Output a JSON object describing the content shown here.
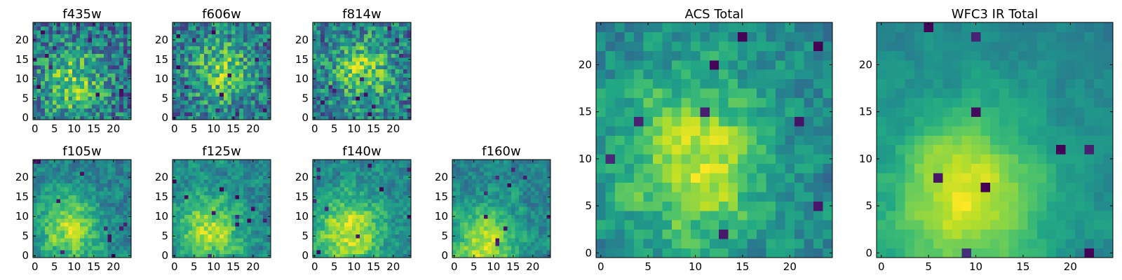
{
  "chart_data": [
    {
      "type": "heatmap",
      "title": "f435w",
      "xlim": [
        -0.5,
        24.5
      ],
      "ylim": [
        -0.5,
        24.5
      ],
      "x_ticks": [
        0,
        5,
        10,
        15,
        20
      ],
      "y_ticks": [
        0,
        5,
        10,
        15,
        20
      ],
      "grid": [
        25,
        25
      ],
      "colormap": "viridis",
      "center": [
        10,
        9
      ],
      "noise": 0.32,
      "smooth": 0
    },
    {
      "type": "heatmap",
      "title": "f606w",
      "xlim": [
        -0.5,
        24.5
      ],
      "ylim": [
        -0.5,
        24.5
      ],
      "x_ticks": [
        0,
        5,
        10,
        15,
        20
      ],
      "y_ticks": [
        0,
        5,
        10,
        15,
        20
      ],
      "grid": [
        25,
        25
      ],
      "colormap": "viridis",
      "center": [
        12,
        12
      ],
      "noise": 0.32,
      "smooth": 0
    },
    {
      "type": "heatmap",
      "title": "f814w",
      "xlim": [
        -0.5,
        24.5
      ],
      "ylim": [
        -0.5,
        24.5
      ],
      "x_ticks": [
        0,
        5,
        10,
        15,
        20
      ],
      "y_ticks": [
        0,
        5,
        10,
        15,
        20
      ],
      "grid": [
        25,
        25
      ],
      "colormap": "viridis",
      "center": [
        12,
        12
      ],
      "noise": 0.3,
      "smooth": 0
    },
    {
      "type": "heatmap",
      "title": "f105w",
      "xlim": [
        -0.5,
        24.5
      ],
      "ylim": [
        -0.5,
        24.5
      ],
      "x_ticks": [
        0,
        5,
        10,
        15,
        20
      ],
      "y_ticks": [
        0,
        5,
        10,
        15,
        20
      ],
      "grid": [
        25,
        25
      ],
      "colormap": "viridis",
      "center": [
        9,
        7
      ],
      "noise": 0.24,
      "smooth": 1
    },
    {
      "type": "heatmap",
      "title": "f125w",
      "xlim": [
        -0.5,
        24.5
      ],
      "ylim": [
        -0.5,
        24.5
      ],
      "x_ticks": [
        0,
        5,
        10,
        15,
        20
      ],
      "y_ticks": [
        0,
        5,
        10,
        15,
        20
      ],
      "grid": [
        25,
        25
      ],
      "colormap": "viridis",
      "center": [
        9,
        7
      ],
      "noise": 0.24,
      "smooth": 1
    },
    {
      "type": "heatmap",
      "title": "f140w",
      "xlim": [
        -0.5,
        24.5
      ],
      "ylim": [
        -0.5,
        24.5
      ],
      "x_ticks": [
        0,
        5,
        10,
        15,
        20
      ],
      "y_ticks": [
        0,
        5,
        10,
        15,
        20
      ],
      "grid": [
        25,
        25
      ],
      "colormap": "viridis",
      "center": [
        9,
        6
      ],
      "noise": 0.22,
      "smooth": 1
    },
    {
      "type": "heatmap",
      "title": "f160w",
      "xlim": [
        -0.5,
        24.5
      ],
      "ylim": [
        -0.5,
        24.5
      ],
      "x_ticks": [
        0,
        5,
        10,
        15,
        20
      ],
      "y_ticks": [
        0,
        5,
        10,
        15,
        20
      ],
      "grid": [
        25,
        25
      ],
      "colormap": "viridis",
      "center": [
        8,
        3
      ],
      "noise": 0.2,
      "smooth": 1
    },
    {
      "type": "heatmap",
      "title": "ACS Total",
      "xlim": [
        -0.5,
        24.5
      ],
      "ylim": [
        -0.5,
        24.5
      ],
      "x_ticks": [
        0,
        5,
        10,
        15,
        20
      ],
      "y_ticks": [
        0,
        5,
        10,
        15,
        20
      ],
      "grid": [
        25,
        25
      ],
      "colormap": "viridis",
      "center": [
        10,
        10
      ],
      "noise": 0.22,
      "smooth": 1
    },
    {
      "type": "heatmap",
      "title": "WFC3 IR Total",
      "xlim": [
        -0.5,
        24.5
      ],
      "ylim": [
        -0.5,
        24.5
      ],
      "x_ticks": [
        0,
        5,
        10,
        15,
        20
      ],
      "y_ticks": [
        0,
        5,
        10,
        15,
        20
      ],
      "grid": [
        25,
        25
      ],
      "colormap": "viridis",
      "center": [
        9,
        6
      ],
      "noise": 0.14,
      "smooth": 2
    }
  ]
}
